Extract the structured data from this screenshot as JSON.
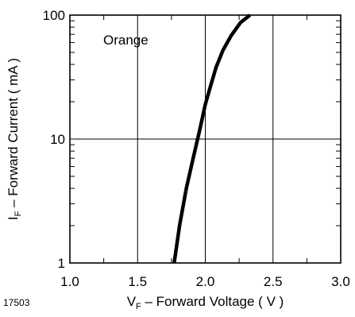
{
  "figure_id": "17503",
  "chart_data": {
    "type": "line",
    "yscale": "log",
    "xlim": [
      1.0,
      3.0
    ],
    "ylim": [
      1,
      100
    ],
    "xticks": [
      1.0,
      1.5,
      2.0,
      2.5,
      3.0
    ],
    "xtick_labels": [
      "1.0",
      "1.5",
      "2.0",
      "2.5",
      "3.0"
    ],
    "yticks": [
      1,
      10,
      100
    ],
    "ytick_labels": [
      "1",
      "10",
      "100"
    ],
    "grid": true,
    "xlabel": {
      "main": "V",
      "sub": "F",
      "rest": " – Forward Voltage ( V )"
    },
    "ylabel": {
      "main": "I",
      "sub": "F",
      "rest": " – Forward Current ( mA )"
    },
    "annotation": "Orange",
    "series": [
      {
        "color": "#000000",
        "x": [
          1.77,
          1.81,
          1.86,
          1.91,
          1.96,
          2.0,
          2.04,
          2.08,
          2.13,
          2.19,
          2.26,
          2.33
        ],
        "y": [
          1,
          2,
          4,
          7,
          12,
          19,
          27,
          38,
          52,
          68,
          87,
          100
        ]
      }
    ]
  }
}
